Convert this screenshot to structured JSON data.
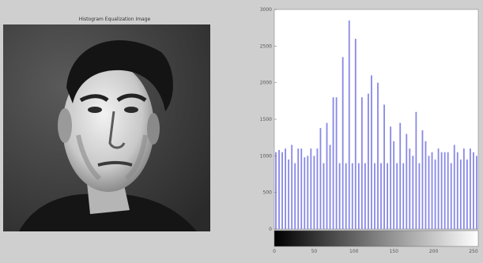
{
  "window": {
    "image_title": "Histogram Equalization Image",
    "image_icon": "portrait-photo-icon"
  },
  "colors": {
    "bar": "#8888e8",
    "axes_bg": "#ffffff",
    "figure_bg": "#cfcfcf"
  },
  "chart_data": {
    "type": "bar",
    "title": "",
    "xlabel": "",
    "ylabel": "",
    "xlim": [
      0,
      256
    ],
    "ylim": [
      0,
      3000
    ],
    "x_ticks": [
      "0",
      "50",
      "100",
      "150",
      "200",
      "250"
    ],
    "y_ticks": [
      "0",
      "500",
      "1000",
      "1500",
      "2000",
      "2500",
      "3000"
    ],
    "grid": false,
    "colorbar": "grayscale 0-255 below x axis",
    "x": [
      0,
      4,
      8,
      12,
      16,
      20,
      24,
      28,
      32,
      36,
      40,
      44,
      48,
      52,
      56,
      60,
      64,
      68,
      72,
      76,
      80,
      84,
      88,
      92,
      96,
      100,
      104,
      108,
      112,
      116,
      120,
      124,
      128,
      132,
      136,
      140,
      144,
      148,
      152,
      156,
      160,
      164,
      168,
      172,
      176,
      180,
      184,
      188,
      192,
      196,
      200,
      204,
      208,
      212,
      216,
      220,
      224,
      228,
      232,
      236,
      240,
      244,
      248,
      252
    ],
    "values": [
      1050,
      1080,
      1050,
      1100,
      950,
      1150,
      900,
      1100,
      1100,
      980,
      1000,
      1100,
      1000,
      1100,
      1380,
      900,
      1450,
      1150,
      1800,
      1800,
      900,
      2350,
      900,
      2850,
      900,
      2600,
      900,
      1800,
      900,
      1850,
      2100,
      900,
      2000,
      900,
      1700,
      900,
      1400,
      1200,
      900,
      1450,
      900,
      1300,
      1100,
      1000,
      1600,
      900,
      1350,
      1200,
      1000,
      1050,
      950,
      1100,
      1050,
      1050,
      1050,
      900,
      1150,
      1050,
      950,
      1100,
      950,
      1100,
      1050,
      1000
    ]
  }
}
